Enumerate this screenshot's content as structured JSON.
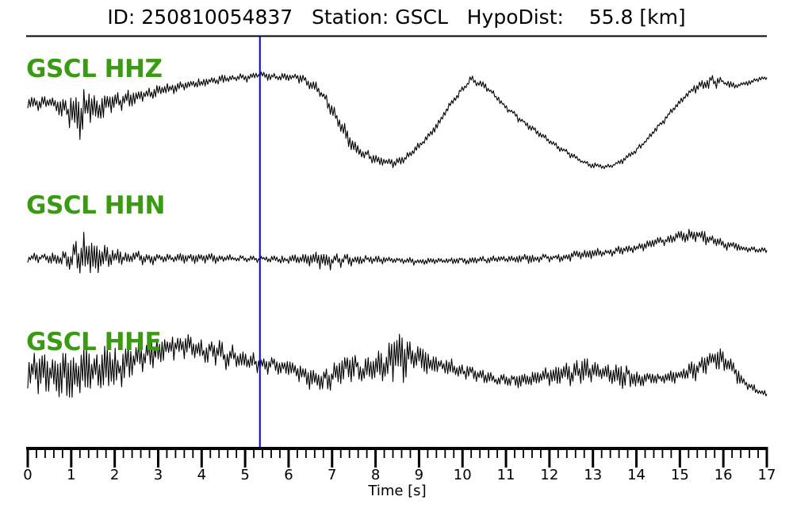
{
  "header": {
    "title": "ID: 250810054837   Station: GSCL   HypoDist:    55.8 [km]"
  },
  "colors": {
    "background": "#ffffff",
    "trace": "#000000",
    "label_green": "#3a9b12",
    "marker_blue": "#0000ee",
    "axis": "#000000"
  },
  "chart_data": {
    "type": "line",
    "title": "ID: 250810054837   Station: GSCL   HypoDist:    55.8 [km]",
    "event_id": "250810054837",
    "station": "GSCL",
    "hypocentral_distance_km": 55.8,
    "xlabel": "Time [s]",
    "x_range": [
      0,
      17
    ],
    "x_major_tick_step_s": 1,
    "x_minor_tick_step_s": 0.2,
    "x_tick_labels": [
      "0",
      "1",
      "2",
      "3",
      "4",
      "5",
      "6",
      "7",
      "8",
      "9",
      "10",
      "11",
      "12",
      "13",
      "14",
      "15",
      "16",
      "17"
    ],
    "pick_marker_time_s": 5.34,
    "y_axis": "none (amplitude in arbitrary units, trend/envelope below in display units)",
    "traces": [
      {
        "id": "hhz",
        "label": "GSCL HHZ",
        "seed": 11,
        "trend": [
          [
            0,
            2
          ],
          [
            0.3,
            -2
          ],
          [
            0.5,
            2
          ],
          [
            0.8,
            -8
          ],
          [
            1.0,
            -10
          ],
          [
            1.1,
            -15
          ],
          [
            1.3,
            -10
          ],
          [
            1.6,
            -5
          ],
          [
            2.0,
            0
          ],
          [
            2.5,
            8
          ],
          [
            3.0,
            15
          ],
          [
            3.5,
            22
          ],
          [
            3.9,
            25
          ],
          [
            4.5,
            30
          ],
          [
            5.0,
            33
          ],
          [
            5.3,
            35
          ],
          [
            5.8,
            33
          ],
          [
            6.2,
            32
          ],
          [
            6.5,
            25
          ],
          [
            6.8,
            10
          ],
          [
            7.1,
            -20
          ],
          [
            7.5,
            -55
          ],
          [
            7.9,
            -70
          ],
          [
            8.3,
            -75
          ],
          [
            8.6,
            -72
          ],
          [
            9.0,
            -55
          ],
          [
            9.4,
            -30
          ],
          [
            9.8,
            5
          ],
          [
            10.2,
            30
          ],
          [
            10.5,
            22
          ],
          [
            11.0,
            -5
          ],
          [
            11.5,
            -28
          ],
          [
            12.0,
            -48
          ],
          [
            12.5,
            -66
          ],
          [
            12.9,
            -77
          ],
          [
            13.3,
            -81
          ],
          [
            13.6,
            -75
          ],
          [
            14.0,
            -60
          ],
          [
            14.3,
            -42
          ],
          [
            14.7,
            -18
          ],
          [
            15.0,
            2
          ],
          [
            15.3,
            18
          ],
          [
            15.6,
            27
          ],
          [
            15.9,
            28
          ],
          [
            16.2,
            22
          ],
          [
            16.5,
            24
          ],
          [
            16.8,
            30
          ],
          [
            17,
            32
          ]
        ],
        "envelope": [
          [
            0,
            12
          ],
          [
            0.5,
            12
          ],
          [
            0.9,
            20
          ],
          [
            1.1,
            45
          ],
          [
            1.4,
            35
          ],
          [
            1.7,
            25
          ],
          [
            2.0,
            18
          ],
          [
            2.5,
            14
          ],
          [
            3.0,
            10
          ],
          [
            4.0,
            8
          ],
          [
            5.0,
            7
          ],
          [
            6.0,
            7
          ],
          [
            6.8,
            10
          ],
          [
            7.2,
            18
          ],
          [
            7.6,
            12
          ],
          [
            8.2,
            8
          ],
          [
            9.0,
            7
          ],
          [
            10.0,
            7
          ],
          [
            11.5,
            6
          ],
          [
            12.5,
            5
          ],
          [
            14.5,
            5
          ],
          [
            15.2,
            6
          ],
          [
            15.7,
            14
          ],
          [
            16.0,
            7
          ],
          [
            16.5,
            5
          ],
          [
            17,
            4
          ]
        ]
      },
      {
        "id": "hhn",
        "label": "GSCL HHN",
        "seed": 22,
        "trend": [
          [
            0,
            0
          ],
          [
            4,
            0
          ],
          [
            5,
            -1
          ],
          [
            6,
            -2
          ],
          [
            7,
            -3
          ],
          [
            8,
            -2
          ],
          [
            9,
            -4
          ],
          [
            10,
            -3
          ],
          [
            11,
            -2
          ],
          [
            12,
            0
          ],
          [
            12.5,
            2
          ],
          [
            13,
            5
          ],
          [
            13.5,
            8
          ],
          [
            14,
            12
          ],
          [
            14.5,
            20
          ],
          [
            15,
            28
          ],
          [
            15.3,
            30
          ],
          [
            15.6,
            25
          ],
          [
            16,
            17
          ],
          [
            16.5,
            12
          ],
          [
            17,
            10
          ]
        ],
        "envelope": [
          [
            0,
            8
          ],
          [
            0.5,
            10
          ],
          [
            0.9,
            18
          ],
          [
            1.1,
            40
          ],
          [
            1.25,
            50
          ],
          [
            1.5,
            38
          ],
          [
            1.8,
            22
          ],
          [
            2.2,
            14
          ],
          [
            2.6,
            10
          ],
          [
            3.2,
            8
          ],
          [
            4.0,
            9
          ],
          [
            4.8,
            6
          ],
          [
            5.5,
            6
          ],
          [
            6.3,
            8
          ],
          [
            6.7,
            16
          ],
          [
            7.0,
            14
          ],
          [
            7.4,
            10
          ],
          [
            8.0,
            7
          ],
          [
            8.6,
            6
          ],
          [
            9.4,
            5
          ],
          [
            10.2,
            6
          ],
          [
            11.0,
            7
          ],
          [
            11.8,
            7
          ],
          [
            12.6,
            8
          ],
          [
            13.2,
            9
          ],
          [
            13.8,
            8
          ],
          [
            14.4,
            8
          ],
          [
            15.0,
            9
          ],
          [
            15.5,
            13
          ],
          [
            15.9,
            9
          ],
          [
            16.5,
            6
          ],
          [
            17,
            5
          ]
        ]
      },
      {
        "id": "hhe",
        "label": "GSCL HHE",
        "seed": 33,
        "trend": [
          [
            0,
            -2
          ],
          [
            0.4,
            -5
          ],
          [
            0.9,
            -6
          ],
          [
            1.4,
            -5
          ],
          [
            1.9,
            0
          ],
          [
            2.4,
            10
          ],
          [
            2.9,
            20
          ],
          [
            3.4,
            30
          ],
          [
            3.8,
            28
          ],
          [
            4.3,
            20
          ],
          [
            4.8,
            14
          ],
          [
            5.3,
            8
          ],
          [
            5.8,
            4
          ],
          [
            6.3,
            -5
          ],
          [
            6.65,
            -13
          ],
          [
            7.0,
            -8
          ],
          [
            7.4,
            0
          ],
          [
            7.8,
            2
          ],
          [
            8.2,
            8
          ],
          [
            8.55,
            22
          ],
          [
            8.8,
            18
          ],
          [
            9.2,
            8
          ],
          [
            9.6,
            5
          ],
          [
            10.0,
            -2
          ],
          [
            10.4,
            -8
          ],
          [
            10.8,
            -13
          ],
          [
            11.3,
            -14
          ],
          [
            11.8,
            -10
          ],
          [
            12.3,
            -5
          ],
          [
            12.8,
            -2
          ],
          [
            13.2,
            -2
          ],
          [
            13.6,
            -8
          ],
          [
            14.0,
            -12
          ],
          [
            14.5,
            -12
          ],
          [
            15.0,
            -8
          ],
          [
            15.4,
            0
          ],
          [
            15.8,
            12
          ],
          [
            16.1,
            8
          ],
          [
            16.4,
            -12
          ],
          [
            16.7,
            -25
          ],
          [
            17,
            -32
          ]
        ],
        "envelope": [
          [
            0,
            30
          ],
          [
            0.4,
            38
          ],
          [
            0.8,
            42
          ],
          [
            1.1,
            45
          ],
          [
            1.5,
            42
          ],
          [
            1.9,
            38
          ],
          [
            2.3,
            30
          ],
          [
            2.8,
            25
          ],
          [
            3.3,
            22
          ],
          [
            3.8,
            20
          ],
          [
            4.3,
            22
          ],
          [
            4.8,
            18
          ],
          [
            5.3,
            15
          ],
          [
            5.8,
            14
          ],
          [
            6.3,
            18
          ],
          [
            6.8,
            22
          ],
          [
            7.2,
            26
          ],
          [
            7.6,
            22
          ],
          [
            8.0,
            24
          ],
          [
            8.4,
            38
          ],
          [
            8.7,
            42
          ],
          [
            9.0,
            25
          ],
          [
            9.5,
            18
          ],
          [
            10.0,
            14
          ],
          [
            10.5,
            12
          ],
          [
            11.0,
            10
          ],
          [
            11.5,
            12
          ],
          [
            12.0,
            16
          ],
          [
            12.5,
            20
          ],
          [
            12.9,
            22
          ],
          [
            13.3,
            18
          ],
          [
            13.8,
            22
          ],
          [
            14.2,
            12
          ],
          [
            14.7,
            10
          ],
          [
            15.2,
            14
          ],
          [
            15.7,
            22
          ],
          [
            16.0,
            18
          ],
          [
            16.4,
            12
          ],
          [
            16.8,
            7
          ],
          [
            17,
            6
          ]
        ]
      }
    ]
  }
}
